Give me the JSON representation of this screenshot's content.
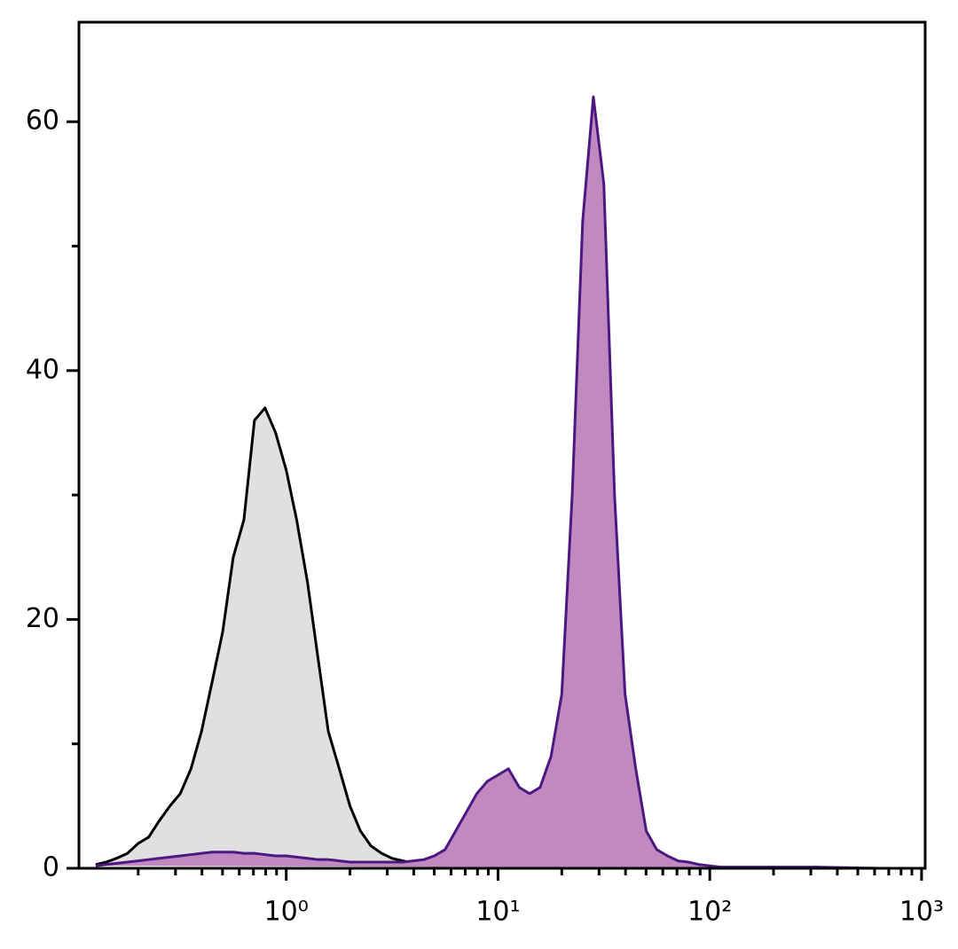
{
  "chart_data": {
    "type": "histogram-overlay",
    "x": [
      0.126,
      0.141,
      0.158,
      0.178,
      0.2,
      0.224,
      0.251,
      0.282,
      0.316,
      0.355,
      0.398,
      0.447,
      0.501,
      0.562,
      0.631,
      0.708,
      0.794,
      0.891,
      1,
      1.12,
      1.26,
      1.41,
      1.58,
      1.78,
      2,
      2.24,
      2.51,
      2.82,
      3.16,
      3.55,
      3.98,
      4.47,
      5.01,
      5.62,
      6.31,
      7.08,
      7.94,
      8.91,
      10,
      11.2,
      12.6,
      14.1,
      15.8,
      17.8,
      20,
      22.4,
      25.1,
      28.2,
      31.6,
      35.5,
      39.8,
      44.7,
      50.1,
      56.2,
      63.1,
      70.8,
      79.4,
      89.1,
      100,
      112,
      126,
      200,
      316,
      631
    ],
    "series": [
      {
        "color": "#000000",
        "fill": "#e0e0e0",
        "values": [
          0.3,
          0.5,
          0.8,
          1.2,
          2,
          2.5,
          3.8,
          5,
          6,
          8,
          11,
          15,
          19,
          25,
          28,
          36,
          37,
          35,
          32,
          28,
          23,
          17,
          11,
          8,
          5,
          3,
          1.8,
          1.2,
          0.8,
          0.6,
          0.4,
          0.3,
          0.2,
          0.1,
          0,
          0,
          0,
          0,
          0,
          0,
          0,
          0,
          0,
          0,
          0,
          0,
          0,
          0,
          0,
          0,
          0,
          0,
          0,
          0,
          0,
          0,
          0,
          0,
          0,
          0,
          0,
          0,
          0,
          0
        ]
      },
      {
        "color": "#4b1882",
        "fill": "#c08ac0",
        "values": [
          0.2,
          0.3,
          0.4,
          0.5,
          0.6,
          0.7,
          0.8,
          0.9,
          1,
          1.1,
          1.2,
          1.3,
          1.3,
          1.3,
          1.2,
          1.2,
          1.1,
          1,
          1,
          0.9,
          0.8,
          0.7,
          0.7,
          0.6,
          0.5,
          0.5,
          0.5,
          0.5,
          0.5,
          0.5,
          0.6,
          0.7,
          1,
          1.5,
          3,
          4.5,
          6,
          7,
          7.5,
          8,
          6.5,
          6,
          6.5,
          9,
          14,
          30,
          52,
          62,
          55,
          30,
          14,
          8,
          3,
          1.5,
          1,
          0.6,
          0.5,
          0.3,
          0.2,
          0.1,
          0.1,
          0.1,
          0.1,
          0
        ]
      }
    ],
    "log_x": true,
    "xlim": [
      0.105,
      1040
    ],
    "ylim": [
      0,
      68
    ],
    "xticks": [
      {
        "value": 1,
        "label": "10⁰"
      },
      {
        "value": 10,
        "label": "10¹"
      },
      {
        "value": 100,
        "label": "10²"
      },
      {
        "value": 1000,
        "label": "10³"
      }
    ],
    "xminor": [
      0.2,
      0.3,
      0.4,
      0.5,
      0.6,
      0.7,
      0.8,
      0.9,
      2,
      3,
      4,
      5,
      6,
      7,
      8,
      9,
      20,
      30,
      40,
      50,
      60,
      70,
      80,
      90,
      200,
      300,
      400,
      500,
      600,
      700,
      800,
      900
    ],
    "yticks": [
      0,
      20,
      40,
      60
    ],
    "yminor": [
      10,
      30,
      50
    ]
  }
}
